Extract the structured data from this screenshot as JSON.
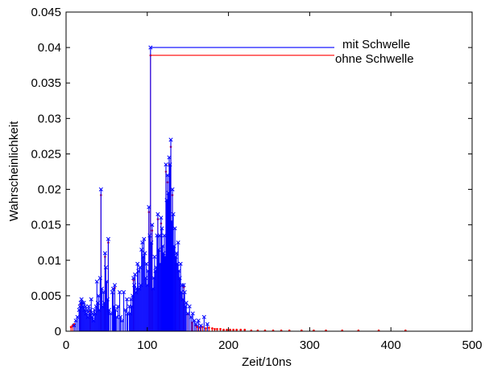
{
  "chart_data": {
    "type": "line",
    "xlabel": "Zeit/10ns",
    "ylabel": "Wahrscheinlichkeit",
    "xlim": [
      0,
      500
    ],
    "ylim": [
      0,
      0.045
    ],
    "grid": false,
    "legend_position": "top-right",
    "x_ticks": [
      "0",
      "100",
      "200",
      "300",
      "400",
      "500"
    ],
    "y_ticks": [
      "0",
      "0.005",
      "0.01",
      "0.015",
      "0.02",
      "0.025",
      "0.03",
      "0.035",
      "0.04",
      "0.045"
    ],
    "series": [
      {
        "name": "mit Schwelle",
        "color": "#0000ff",
        "marker": "x",
        "style": "stem",
        "points": [
          [
            10,
            0.0008
          ],
          [
            12,
            0.0015
          ],
          [
            14,
            0.002
          ],
          [
            16,
            0.003
          ],
          [
            17,
            0.0035
          ],
          [
            18,
            0.004
          ],
          [
            19,
            0.0045
          ],
          [
            20,
            0.004
          ],
          [
            21,
            0.0035
          ],
          [
            22,
            0.004
          ],
          [
            23,
            0.003
          ],
          [
            24,
            0.0035
          ],
          [
            25,
            0.0025
          ],
          [
            26,
            0.003
          ],
          [
            27,
            0.002
          ],
          [
            28,
            0.0035
          ],
          [
            29,
            0.0025
          ],
          [
            30,
            0.003
          ],
          [
            31,
            0.0045
          ],
          [
            32,
            0.002
          ],
          [
            33,
            0.0025
          ],
          [
            34,
            0.0015
          ],
          [
            35,
            0.003
          ],
          [
            36,
            0.0025
          ],
          [
            37,
            0.0035
          ],
          [
            38,
            0.007
          ],
          [
            39,
            0.004
          ],
          [
            40,
            0.005
          ],
          [
            41,
            0.003
          ],
          [
            42,
            0.0075
          ],
          [
            43,
            0.02
          ],
          [
            44,
            0.006
          ],
          [
            45,
            0.0035
          ],
          [
            46,
            0.0055
          ],
          [
            47,
            0.004
          ],
          [
            48,
            0.011
          ],
          [
            49,
            0.009
          ],
          [
            50,
            0.007
          ],
          [
            51,
            0.0045
          ],
          [
            52,
            0.013
          ],
          [
            53,
            0.003
          ],
          [
            55,
            0.0025
          ],
          [
            57,
            0.0055
          ],
          [
            58,
            0.006
          ],
          [
            59,
            0.0035
          ],
          [
            60,
            0.0065
          ],
          [
            61,
            0.003
          ],
          [
            62,
            0.002
          ],
          [
            64,
            0.0035
          ],
          [
            66,
            0.0055
          ],
          [
            67,
            0.002
          ],
          [
            69,
            0.0015
          ],
          [
            71,
            0.0055
          ],
          [
            73,
            0.003
          ],
          [
            75,
            0.0045
          ],
          [
            76,
            0.0025
          ],
          [
            78,
            0.0035
          ],
          [
            79,
            0.0025
          ],
          [
            80,
            0.0045
          ],
          [
            81,
            0.0035
          ],
          [
            82,
            0.005
          ],
          [
            83,
            0.0075
          ],
          [
            84,
            0.0065
          ],
          [
            85,
            0.008
          ],
          [
            86,
            0.0055
          ],
          [
            87,
            0.006
          ],
          [
            88,
            0.0095
          ],
          [
            89,
            0.0085
          ],
          [
            90,
            0.006
          ],
          [
            91,
            0.009
          ],
          [
            92,
            0.0065
          ],
          [
            93,
            0.0115
          ],
          [
            94,
            0.0125
          ],
          [
            95,
            0.0105
          ],
          [
            96,
            0.013
          ],
          [
            97,
            0.011
          ],
          [
            98,
            0.0075
          ],
          [
            99,
            0.0095
          ],
          [
            100,
            0.0065
          ],
          [
            101,
            0.0085
          ],
          [
            102,
            0.0175
          ],
          [
            103,
            0.0135
          ],
          [
            104,
            0.04
          ],
          [
            105,
            0.0125
          ],
          [
            106,
            0.015
          ],
          [
            107,
            0.006
          ],
          [
            108,
            0.0075
          ],
          [
            109,
            0.0105
          ],
          [
            110,
            0.0085
          ],
          [
            111,
            0.009
          ],
          [
            112,
            0.0135
          ],
          [
            113,
            0.0165
          ],
          [
            114,
            0.0115
          ],
          [
            115,
            0.0135
          ],
          [
            116,
            0.0095
          ],
          [
            117,
            0.016
          ],
          [
            118,
            0.0145
          ],
          [
            119,
            0.012
          ],
          [
            120,
            0.011
          ],
          [
            121,
            0.0135
          ],
          [
            122,
            0.0105
          ],
          [
            123,
            0.0235
          ],
          [
            124,
            0.0185
          ],
          [
            125,
            0.022
          ],
          [
            126,
            0.0195
          ],
          [
            127,
            0.0245
          ],
          [
            128,
            0.0235
          ],
          [
            129,
            0.027
          ],
          [
            130,
            0.0155
          ],
          [
            131,
            0.02
          ],
          [
            132,
            0.0165
          ],
          [
            133,
            0.012
          ],
          [
            134,
            0.0145
          ],
          [
            135,
            0.0105
          ],
          [
            136,
            0.011
          ],
          [
            137,
            0.0095
          ],
          [
            138,
            0.0125
          ],
          [
            139,
            0.0085
          ],
          [
            140,
            0.0075
          ],
          [
            141,
            0.0095
          ],
          [
            142,
            0.0055
          ],
          [
            143,
            0.0065
          ],
          [
            144,
            0.0045
          ],
          [
            145,
            0.0065
          ],
          [
            146,
            0.0055
          ],
          [
            147,
            0.0035
          ],
          [
            148,
            0.004
          ],
          [
            150,
            0.0025
          ],
          [
            152,
            0.0035
          ],
          [
            154,
            0.002
          ],
          [
            156,
            0.0025
          ],
          [
            158,
            0.0015
          ],
          [
            160,
            0.001
          ],
          [
            163,
            0.0015
          ],
          [
            166,
            0.0008
          ],
          [
            170,
            0.002
          ],
          [
            174,
            0.001
          ]
        ]
      },
      {
        "name": "ohne Schwelle",
        "color": "#ff0000",
        "marker": ".",
        "style": "stem",
        "points": [
          [
            6,
            0.0006
          ],
          [
            8,
            0.0008
          ],
          [
            10,
            0.001
          ],
          [
            18,
            0.0038
          ],
          [
            30,
            0.0028
          ],
          [
            43,
            0.0192
          ],
          [
            48,
            0.0105
          ],
          [
            52,
            0.0125
          ],
          [
            60,
            0.0061
          ],
          [
            83,
            0.0072
          ],
          [
            102,
            0.0168
          ],
          [
            104,
            0.0389
          ],
          [
            106,
            0.0142
          ],
          [
            113,
            0.0158
          ],
          [
            117,
            0.0152
          ],
          [
            123,
            0.0225
          ],
          [
            125,
            0.021
          ],
          [
            127,
            0.0235
          ],
          [
            129,
            0.026
          ],
          [
            131,
            0.0192
          ],
          [
            135,
            0.0101
          ],
          [
            140,
            0.0072
          ],
          [
            145,
            0.0062
          ],
          [
            150,
            0.0024
          ],
          [
            155,
            0.0012
          ],
          [
            160,
            0.0008
          ],
          [
            162,
            0.0006
          ],
          [
            165,
            0.0005
          ],
          [
            168,
            0.0006
          ],
          [
            172,
            0.0004
          ],
          [
            176,
            0.0005
          ],
          [
            180,
            0.0004
          ],
          [
            183,
            0.0003
          ],
          [
            186,
            0.0003
          ],
          [
            190,
            0.0003
          ],
          [
            194,
            0.0002
          ],
          [
            198,
            0.0002
          ],
          [
            202,
            0.0002
          ],
          [
            206,
            0.0002
          ],
          [
            210,
            0.0002
          ],
          [
            215,
            0.0002
          ],
          [
            220,
            0.0002
          ],
          [
            228,
            0.0001
          ],
          [
            236,
            0.0001
          ],
          [
            245,
            0.0001
          ],
          [
            255,
            0.0001
          ],
          [
            265,
            0.0001
          ],
          [
            275,
            0.0001
          ],
          [
            290,
            0.0001
          ],
          [
            305,
            0.0001
          ],
          [
            320,
            0.0001
          ],
          [
            340,
            0.0001
          ],
          [
            360,
            0.0001
          ],
          [
            385,
            0.0001
          ],
          [
            418,
            0.0001
          ]
        ]
      }
    ]
  }
}
